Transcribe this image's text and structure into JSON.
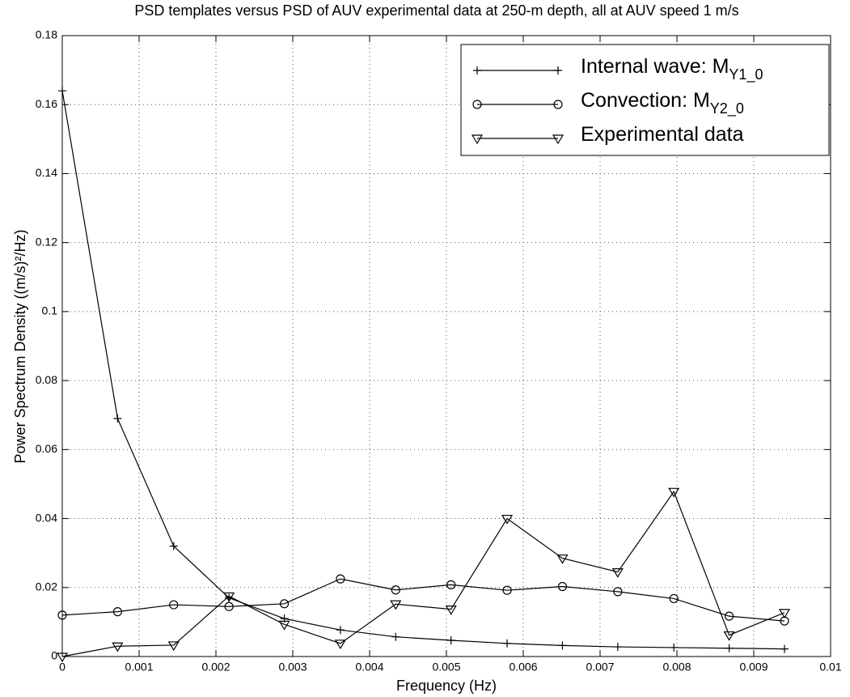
{
  "chart_data": {
    "type": "line",
    "title": "PSD templates versus PSD of AUV experimental data at 250-m depth, all at AUV speed 1 m/s",
    "x_label": "Frequency (Hz)",
    "y_label": "Power Spectrum Density ((m/s)²/Hz)",
    "x": [
      0,
      0.00072,
      0.00145,
      0.00217,
      0.00289,
      0.00362,
      0.00434,
      0.00506,
      0.00579,
      0.00651,
      0.00723,
      0.00796,
      0.00868,
      0.0094
    ],
    "series": [
      {
        "name": "Internal wave: M",
        "name_sub": "Y1_0",
        "color": "#000000",
        "marker": "plus",
        "values": [
          0.164,
          0.069,
          0.032,
          0.017,
          0.011,
          0.0077,
          0.0057,
          0.0047,
          0.0038,
          0.0032,
          0.0028,
          0.0026,
          0.0024,
          0.0022
        ]
      },
      {
        "name": "Convection: M",
        "name_sub": "Y2_0",
        "color": "#000000",
        "marker": "circle",
        "values": [
          0.012,
          0.013,
          0.015,
          0.0145,
          0.0153,
          0.0225,
          0.0193,
          0.0208,
          0.0192,
          0.0203,
          0.0188,
          0.0168,
          0.0117,
          0.0103
        ]
      },
      {
        "name": "Experimental data",
        "color": "#000000",
        "marker": "triangle",
        "values": [
          0.0,
          0.003,
          0.0033,
          0.0175,
          0.0093,
          0.0038,
          0.0152,
          0.0137,
          0.04,
          0.0285,
          0.0245,
          0.0478,
          0.0062,
          0.0127
        ]
      }
    ],
    "xlim": [
      0,
      0.01
    ],
    "xticks": [
      0,
      0.001,
      0.002,
      0.003,
      0.004,
      0.005,
      0.006,
      0.007,
      0.008,
      0.009,
      0.01
    ],
    "ylim": [
      0,
      0.18
    ],
    "yticks": [
      0,
      0.02,
      0.04,
      0.06,
      0.08,
      0.1,
      0.12,
      0.14,
      0.16,
      0.18
    ],
    "grid": true,
    "legend": "upper right"
  }
}
